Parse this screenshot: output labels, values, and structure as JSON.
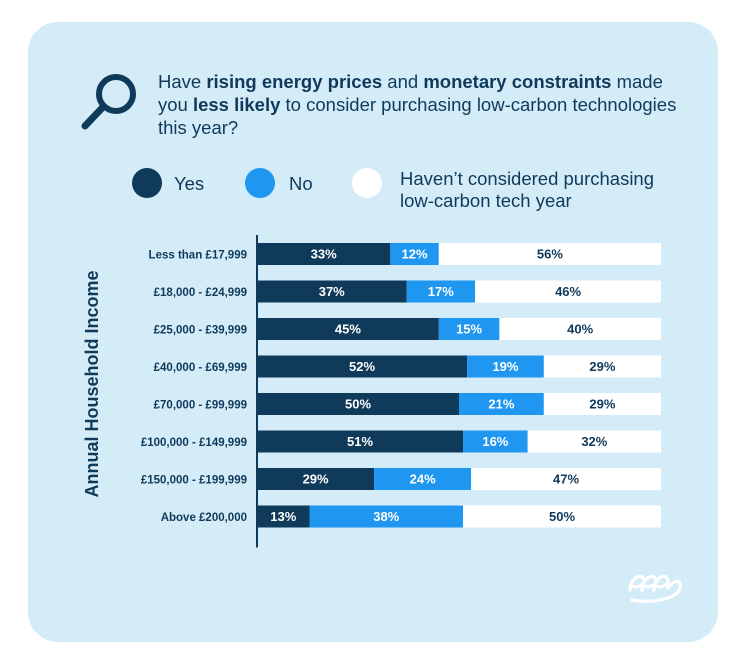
{
  "colors": {
    "background": "#d4ebf8",
    "yes": "#0f3a5a",
    "no": "#1f96f0",
    "havent": "#ffffff",
    "text": "#0f3a5a",
    "axis": "#0f3a5a"
  },
  "icons": {
    "magnifier": "magnifying-glass-icon",
    "logo": "brand-logo-icon"
  },
  "title": {
    "part1": "Have ",
    "bold1": "rising energy prices",
    "part2": " and ",
    "bold2": "monetary constraints",
    "part3": " made you ",
    "bold3": "less likely",
    "part4": " to consider purchasing low-carbon technologies this year?"
  },
  "legend": {
    "yes": "Yes",
    "no": "No",
    "havent_line1": "Haven’t considered purchasing",
    "havent_line2": "low-carbon tech year"
  },
  "chart_data": {
    "type": "bar",
    "orientation": "horizontal",
    "stacked": true,
    "title": "Have rising energy prices and monetary constraints made you less likely to consider purchasing low-carbon technologies this year?",
    "ylabel": "Annual Household Income",
    "xlabel": "",
    "categories": [
      "Less than £17,999",
      "£18,000 - £24,999",
      "£25,000 - £39,999",
      "£40,000 - £69,999",
      "£70,000 - £99,999",
      "£100,000 - £149,999",
      "£150,000 - £199,999",
      "Above £200,000"
    ],
    "series": [
      {
        "name": "Yes",
        "values": [
          33,
          37,
          45,
          52,
          50,
          51,
          29,
          13
        ],
        "labels": [
          "33%",
          "37%",
          "45%",
          "52%",
          "50%",
          "51%",
          "29%",
          "13%"
        ]
      },
      {
        "name": "No",
        "values": [
          12,
          17,
          15,
          19,
          21,
          16,
          24,
          38
        ],
        "labels": [
          "12%",
          "17%",
          "15%",
          "19%",
          "21%",
          "16%",
          "24%",
          "38%"
        ]
      },
      {
        "name": "Haven’t considered purchasing low-carbon tech year",
        "values": [
          56,
          46,
          40,
          29,
          29,
          32,
          47,
          50
        ],
        "labels": [
          "56%",
          "46%",
          "40%",
          "29%",
          "29%",
          "32%",
          "47%",
          "50%"
        ]
      }
    ],
    "legend_position": "top"
  }
}
